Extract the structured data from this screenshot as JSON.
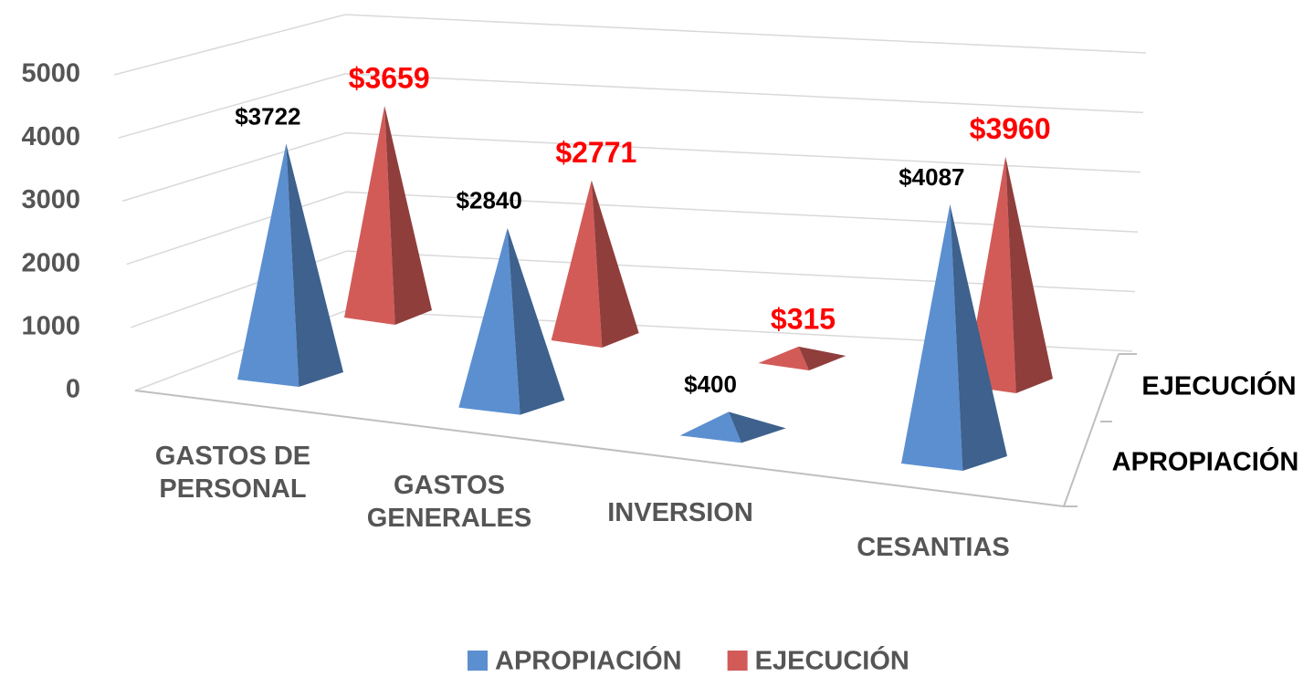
{
  "chart_data": {
    "type": "pyramid3d",
    "categories": [
      "GASTOS DE PERSONAL",
      "GASTOS GENERALES",
      "INVERSION",
      "CESANTIAS"
    ],
    "series": [
      {
        "name": "APROPIACIÓN",
        "color": "#5b8fd0",
        "values": [
          3722,
          2840,
          400,
          4087
        ],
        "value_labels": [
          "$3722",
          "$2840",
          "$400",
          "$4087"
        ]
      },
      {
        "name": "EJECUCIÓN",
        "color": "#d25b58",
        "values": [
          3659,
          2771,
          315,
          3960
        ],
        "value_labels": [
          "$3659",
          "$2771",
          "$315",
          "$3960"
        ]
      }
    ],
    "ylim": [
      0,
      5000
    ],
    "yticks": [
      0,
      1000,
      2000,
      3000,
      4000,
      5000
    ],
    "grid": true,
    "legend": "bottom"
  }
}
